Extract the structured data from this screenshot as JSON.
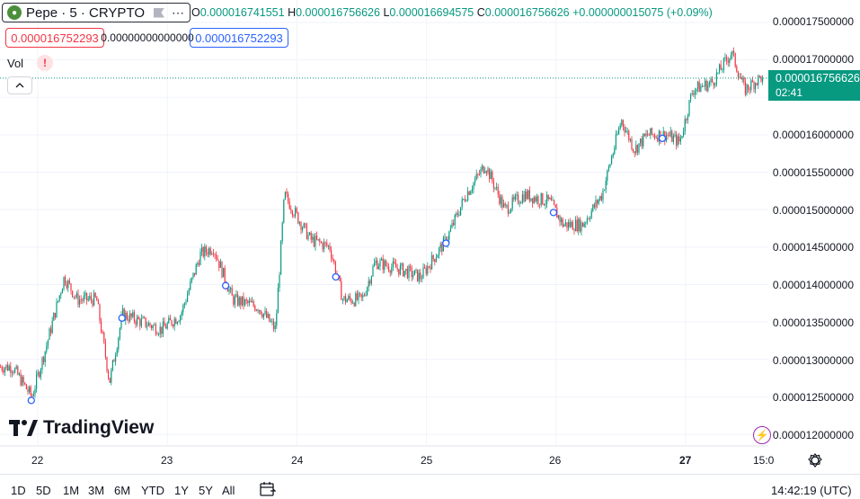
{
  "symbol": {
    "title": "Pepe · 5 · CRYPTO",
    "logo_icon": "pepe-frog-icon",
    "menu_icon": "more-dots-icon"
  },
  "ohlc": {
    "open_label": "O",
    "open": "0.000016741551",
    "high_label": "H",
    "high": "0.000016756626",
    "low_label": "L",
    "low": "0.000016694575",
    "close_label": "C",
    "close": "0.000016756626",
    "change": "+0.000000015075 (+0.09%)"
  },
  "order_prices": {
    "sell": "0.000016752293",
    "spread": "0.00000000000000",
    "buy": "0.000016752293"
  },
  "volume": {
    "label": "Vol",
    "warning": "!"
  },
  "y_axis": {
    "ticks": [
      "0.000017500000",
      "0.000017000000",
      "0.000016500000",
      "0.000016000000",
      "0.000015500000",
      "0.000015000000",
      "0.000014500000",
      "0.000014000000",
      "0.000013500000",
      "0.000013000000",
      "0.000012500000",
      "0.000012000000"
    ]
  },
  "last_price": {
    "value": "0.000016756626",
    "countdown": "02:41"
  },
  "x_axis": {
    "ticks": [
      "22",
      "23",
      "24",
      "25",
      "26",
      "27",
      "15:0"
    ]
  },
  "branding": {
    "name": "TradingView"
  },
  "ranges": [
    "1D",
    "5D",
    "1M",
    "3M",
    "6M",
    "YTD",
    "1Y",
    "5Y",
    "All"
  ],
  "clock": "14:42:19 (UTC)",
  "colors": {
    "up": "#089981",
    "down": "#f23645",
    "buy": "#2962ff",
    "sell": "#f23645",
    "accent": "#9c27b0"
  },
  "chart_data": {
    "type": "candlestick",
    "x_range": [
      "21.8",
      "27.6"
    ],
    "ylim": [
      1.18e-05,
      1.77e-05
    ],
    "last_close": 1.6756626e-05,
    "path_keypoints": [
      {
        "x": 21.8,
        "y": 1.29e-05
      },
      {
        "x": 21.95,
        "y": 1.25e-05
      },
      {
        "x": 22.05,
        "y": 1.31e-05
      },
      {
        "x": 22.2,
        "y": 1.41e-05
      },
      {
        "x": 22.3,
        "y": 1.38e-05
      },
      {
        "x": 22.45,
        "y": 1.38e-05
      },
      {
        "x": 22.55,
        "y": 1.27e-05
      },
      {
        "x": 22.65,
        "y": 1.36e-05
      },
      {
        "x": 22.8,
        "y": 1.35e-05
      },
      {
        "x": 22.95,
        "y": 1.34e-05
      },
      {
        "x": 23.1,
        "y": 1.36e-05
      },
      {
        "x": 23.25,
        "y": 1.44e-05
      },
      {
        "x": 23.35,
        "y": 1.45e-05
      },
      {
        "x": 23.5,
        "y": 1.38e-05
      },
      {
        "x": 23.7,
        "y": 1.37e-05
      },
      {
        "x": 23.83,
        "y": 1.34e-05
      },
      {
        "x": 23.9,
        "y": 1.52e-05
      },
      {
        "x": 24.1,
        "y": 1.46e-05
      },
      {
        "x": 24.25,
        "y": 1.45e-05
      },
      {
        "x": 24.35,
        "y": 1.38e-05
      },
      {
        "x": 24.5,
        "y": 1.38e-05
      },
      {
        "x": 24.6,
        "y": 1.43e-05
      },
      {
        "x": 24.8,
        "y": 1.42e-05
      },
      {
        "x": 24.95,
        "y": 1.41e-05
      },
      {
        "x": 25.15,
        "y": 1.46e-05
      },
      {
        "x": 25.3,
        "y": 1.52e-05
      },
      {
        "x": 25.45,
        "y": 1.56e-05
      },
      {
        "x": 25.6,
        "y": 1.5e-05
      },
      {
        "x": 25.75,
        "y": 1.52e-05
      },
      {
        "x": 25.95,
        "y": 1.51e-05
      },
      {
        "x": 26.05,
        "y": 1.48e-05
      },
      {
        "x": 26.2,
        "y": 1.48e-05
      },
      {
        "x": 26.35,
        "y": 1.52e-05
      },
      {
        "x": 26.5,
        "y": 1.62e-05
      },
      {
        "x": 26.6,
        "y": 1.58e-05
      },
      {
        "x": 26.7,
        "y": 1.6e-05
      },
      {
        "x": 26.85,
        "y": 1.6e-05
      },
      {
        "x": 26.95,
        "y": 1.59e-05
      },
      {
        "x": 27.05,
        "y": 1.66e-05
      },
      {
        "x": 27.2,
        "y": 1.67e-05
      },
      {
        "x": 27.35,
        "y": 1.71e-05
      },
      {
        "x": 27.45,
        "y": 1.66e-05
      },
      {
        "x": 27.6,
        "y": 1.68e-05
      }
    ],
    "event_markers_x": [
      21.95,
      22.65,
      23.45,
      24.3,
      25.15,
      25.98,
      26.82
    ]
  }
}
